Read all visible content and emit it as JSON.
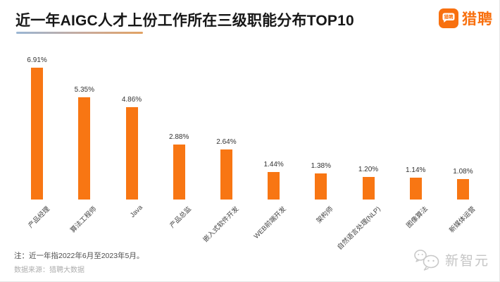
{
  "header": {
    "title": "近一年AIGC人才上份工作所在三级职能分布TOP10",
    "logo": {
      "icon_text": "猎聘",
      "brand_label": "猎聘"
    }
  },
  "chart_data": {
    "type": "bar",
    "title": "近一年AIGC人才上份工作所在三级职能分布TOP10",
    "categories": [
      "产品经理",
      "算法工程师",
      "Java",
      "产品总监",
      "嵌入式软件开发",
      "WEB前端开发",
      "架构师",
      "自然语言处理(NLP)",
      "图像算法",
      "新媒体运营"
    ],
    "values": [
      6.91,
      5.35,
      4.86,
      2.88,
      2.64,
      1.44,
      1.38,
      1.2,
      1.14,
      1.08
    ],
    "value_labels": [
      "6.91%",
      "5.35%",
      "4.86%",
      "2.88%",
      "2.64%",
      "1.44%",
      "1.38%",
      "1.20%",
      "1.14%",
      "1.08%"
    ],
    "xlabel": "",
    "ylabel": "",
    "ylim": [
      0,
      7.5
    ],
    "grid": false,
    "axis_visible": false,
    "legend": false,
    "bar_color": "#f87613"
  },
  "footer": {
    "note": "注：近一年指2022年6月至2023年5月。",
    "source": "数据来源：猎聘大数据"
  },
  "watermark": {
    "text": "新智元"
  },
  "colors": {
    "accent_orange": "#f8700f",
    "bar_orange": "#f87613",
    "title_text": "#171717",
    "label_text": "#454545",
    "muted_text": "#aeaeae",
    "watermark_gray": "#c5c5c5",
    "underline_left": "#9ab6d4",
    "underline_right": "#e2a263"
  }
}
